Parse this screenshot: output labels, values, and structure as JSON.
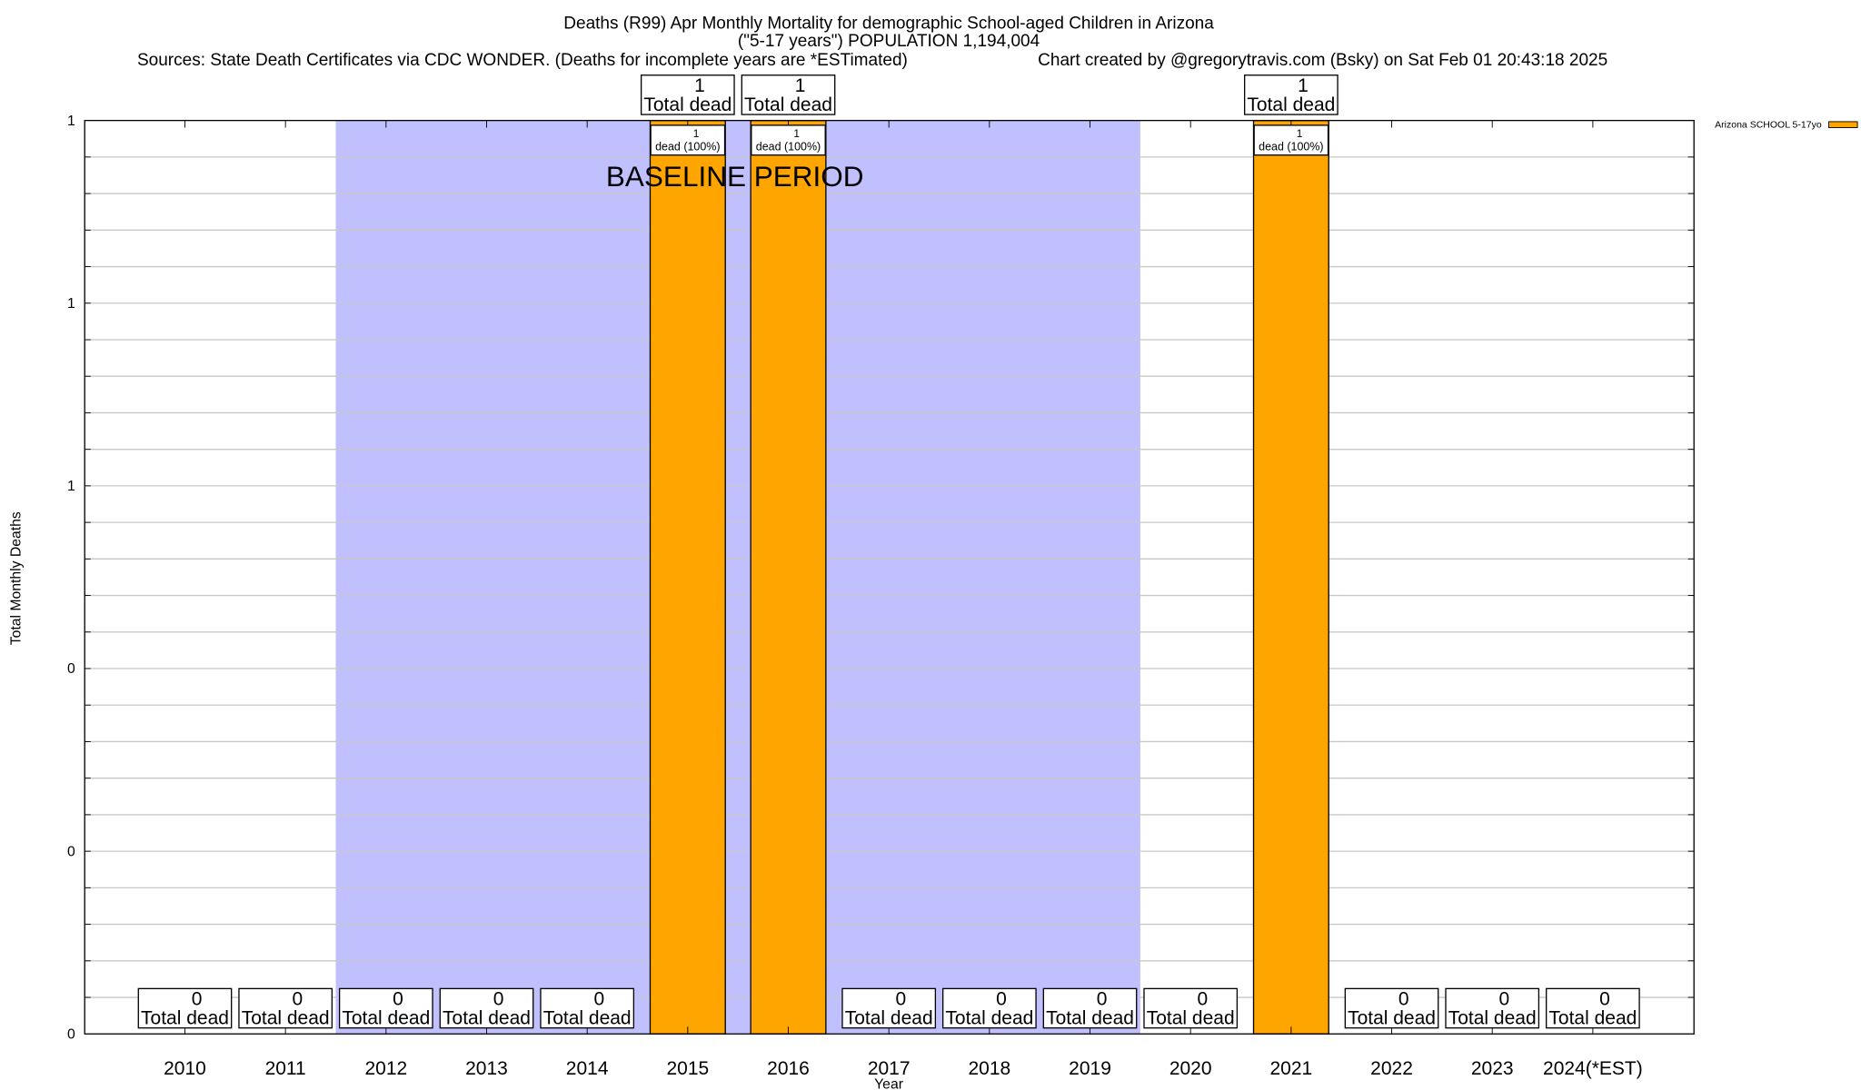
{
  "chart_data": {
    "type": "bar",
    "title": "Deaths (R99) Apr Monthly Mortality for demographic School-aged Children in Arizona",
    "subtitle": "(\"5-17 years\") POPULATION 1,194,004",
    "sources": "Sources: State Death Certificates via CDC WONDER. (Deaths for incomplete years are *ESTimated)",
    "credit": "Chart created by @gregorytravis.com (Bsky) on Sat Feb 01 20:43:18 2025",
    "xlabel": "Year",
    "ylabel": "Total Monthly Deaths",
    "categories": [
      "2010",
      "2011",
      "2012",
      "2013",
      "2014",
      "2015",
      "2016",
      "2017",
      "2018",
      "2019",
      "2020",
      "2021",
      "2022",
      "2023",
      "2024(*EST)"
    ],
    "series": [
      {
        "name": "Arizona SCHOOL 5-17yo",
        "values": [
          0,
          0,
          0,
          0,
          0,
          1,
          1,
          0,
          0,
          0,
          0,
          1,
          0,
          0,
          0
        ],
        "color": "#ffa500"
      }
    ],
    "ylim": [
      0,
      1
    ],
    "y_tick_labels": [
      "0",
      "0",
      "0",
      "1",
      "1",
      "1"
    ],
    "grid": true,
    "legend_position": "outside-top-right",
    "total_label": "Total dead",
    "bar_label_suffix": "dead (100%)",
    "annotation": "BASELINE PERIOD",
    "baseline_period": [
      "2012",
      "2019"
    ],
    "baseline_color": "#c0c0ff"
  }
}
